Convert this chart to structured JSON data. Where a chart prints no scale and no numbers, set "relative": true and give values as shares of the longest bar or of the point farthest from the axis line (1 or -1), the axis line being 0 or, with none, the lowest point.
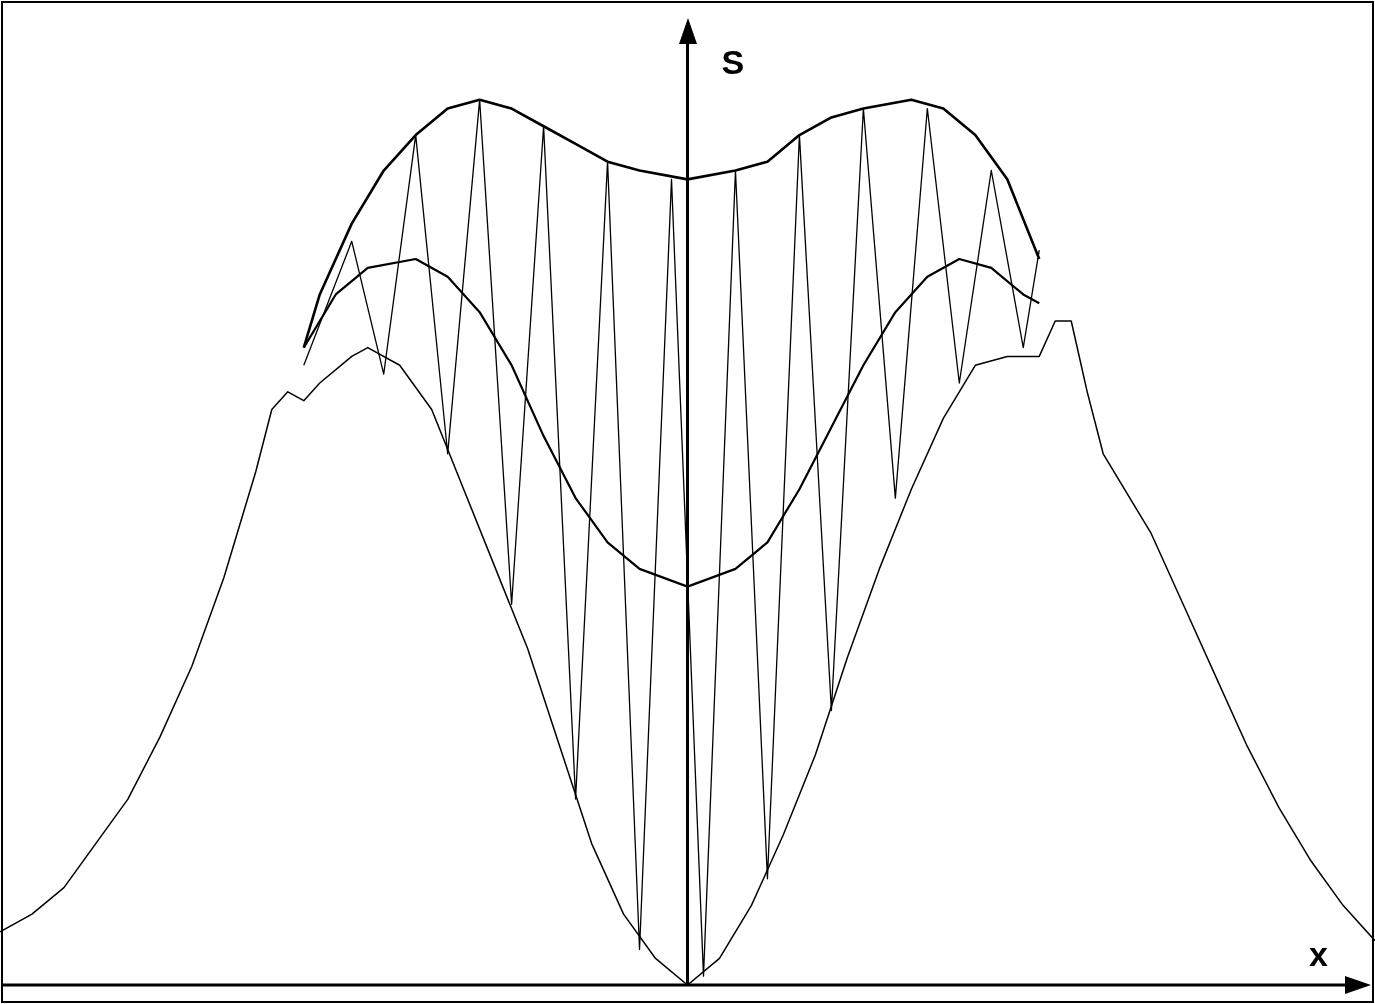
{
  "chart_data": {
    "type": "line",
    "relative": true,
    "xlabel": "x",
    "ylabel": "S",
    "legend": false,
    "marker": "none",
    "line_style": "solid",
    "categories": [
      null,
      null,
      null,
      null,
      null,
      null,
      null,
      null,
      null,
      null,
      null,
      null,
      null,
      null,
      null,
      null,
      null,
      null,
      null,
      null,
      null,
      null,
      null,
      null,
      null,
      null,
      null,
      null,
      null,
      null,
      null,
      null,
      null,
      null,
      null,
      null,
      null,
      null,
      null,
      null,
      null,
      null,
      null,
      null,
      null,
      null,
      null,
      null,
      null,
      null,
      null,
      null,
      null,
      null,
      null,
      null,
      null,
      null,
      null,
      null,
      null,
      null,
      null,
      null,
      null,
      null,
      null,
      null,
      null,
      null,
      null,
      null,
      null,
      null,
      null,
      null,
      null,
      null,
      null,
      null,
      null,
      null,
      null,
      null,
      null,
      null,
      null
    ],
    "series": [
      {
        "color": "#000000",
        "values": [
          0.06,
          null,
          0.08,
          null,
          0.11,
          null,
          0.16,
          null,
          0.21,
          null,
          0.28,
          null,
          0.36,
          null,
          0.46,
          null,
          0.58,
          0.65,
          0.67,
          0.66,
          0.68,
          null,
          0.71,
          0.72,
          null,
          0.7,
          null,
          0.65,
          null,
          0.56,
          null,
          0.47,
          null,
          0.38,
          null,
          0.27,
          null,
          0.16,
          null,
          0.08,
          null,
          0.03,
          null,
          0,
          null,
          0.03,
          null,
          0.09,
          null,
          0.17,
          null,
          0.26,
          null,
          0.37,
          null,
          0.47,
          null,
          0.56,
          null,
          0.64,
          null,
          0.7,
          null,
          0.71,
          null,
          0.71,
          0.75,
          0.75,
          0.67,
          0.6,
          0.57,
          null,
          0.51,
          null,
          0.43,
          null,
          0.35,
          null,
          0.27,
          null,
          0.2,
          null,
          0.14,
          null,
          0.09,
          null,
          0.05
        ]
      },
      {
        "color": "#000000",
        "values": [
          null,
          null,
          null,
          null,
          null,
          null,
          null,
          null,
          null,
          null,
          null,
          null,
          null,
          null,
          null,
          null,
          null,
          null,
          null,
          0.72,
          null,
          0.78,
          null,
          0.81,
          null,
          null,
          0.82,
          null,
          0.8,
          null,
          0.76,
          null,
          0.7,
          null,
          0.62,
          null,
          0.55,
          null,
          0.5,
          null,
          0.47,
          null,
          null,
          0.45,
          null,
          null,
          0.47,
          null,
          0.5,
          null,
          0.56,
          null,
          0.63,
          null,
          0.7,
          null,
          0.76,
          null,
          0.8,
          null,
          0.82,
          null,
          0.81,
          null,
          0.78,
          0.77,
          null,
          null,
          null,
          null,
          null,
          null,
          null,
          null,
          null,
          null,
          null,
          null,
          null,
          null,
          null,
          null,
          null,
          null,
          null,
          null,
          null
        ]
      },
      {
        "color": "#000000",
        "values": [
          null,
          null,
          null,
          null,
          null,
          null,
          null,
          null,
          null,
          null,
          null,
          null,
          null,
          null,
          null,
          null,
          null,
          null,
          null,
          0.72,
          0.78,
          null,
          0.86,
          null,
          0.92,
          null,
          0.96,
          null,
          0.99,
          null,
          1,
          null,
          0.99,
          null,
          0.97,
          null,
          0.95,
          null,
          0.93,
          null,
          0.92,
          null,
          null,
          0.91,
          null,
          null,
          0.92,
          null,
          0.93,
          null,
          0.96,
          null,
          0.98,
          null,
          0.99,
          null,
          null,
          1,
          null,
          0.99,
          null,
          0.96,
          null,
          0.91,
          null,
          0.82,
          null,
          null,
          null,
          null,
          null,
          null,
          null,
          null,
          null,
          null,
          null,
          null,
          null,
          null,
          null,
          null,
          null,
          null,
          null,
          null,
          null
        ]
      },
      {
        "color": "#000000",
        "values": [
          null,
          null,
          null,
          null,
          null,
          null,
          null,
          null,
          null,
          null,
          null,
          null,
          null,
          null,
          null,
          null,
          null,
          null,
          null,
          0.7,
          null,
          null,
          0.84,
          null,
          0.69,
          null,
          0.96,
          null,
          0.6,
          null,
          1,
          null,
          0.43,
          null,
          0.97,
          null,
          0.21,
          null,
          0.93,
          null,
          0.04,
          null,
          0.91,
          null,
          0.01,
          null,
          0.92,
          null,
          0.12,
          null,
          0.96,
          null,
          0.31,
          null,
          0.99,
          null,
          0.55,
          null,
          0.99,
          null,
          0.68,
          null,
          0.92,
          null,
          0.72,
          0.83,
          null,
          null,
          null,
          null,
          null,
          null,
          null,
          null,
          null,
          null,
          null,
          null,
          null,
          null,
          null,
          null,
          null,
          null,
          null,
          null,
          null
        ]
      }
    ]
  }
}
